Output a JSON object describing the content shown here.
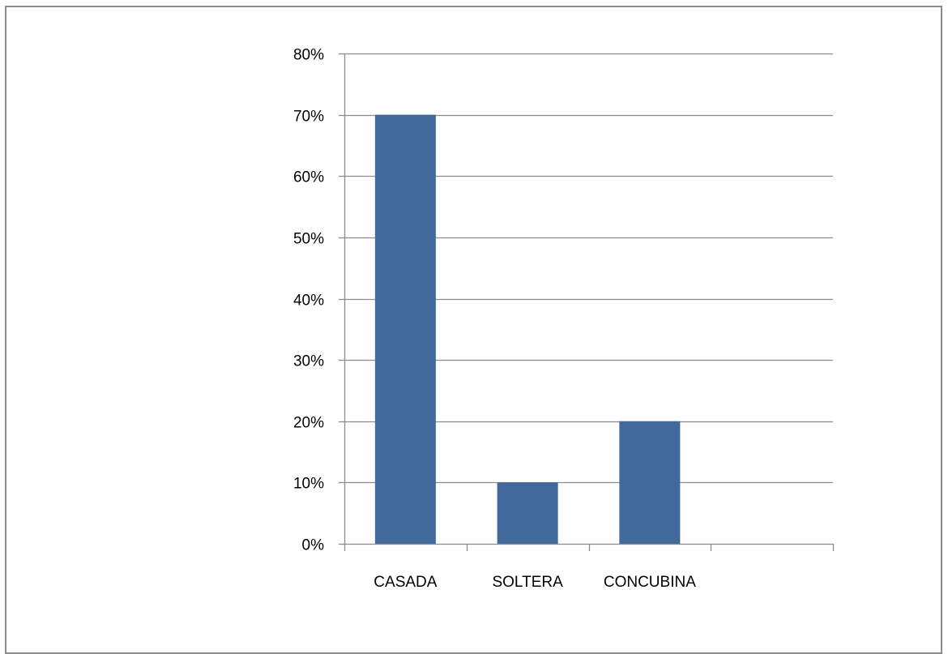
{
  "chart_data": {
    "type": "bar",
    "categories": [
      "CASADA",
      "SOLTERA",
      "CONCUBINA",
      ""
    ],
    "values": [
      70,
      10,
      20,
      null
    ],
    "ylim": [
      0,
      80
    ],
    "y_ticks": [
      0,
      10,
      20,
      30,
      40,
      50,
      60,
      70,
      80
    ],
    "y_tick_format": "percent",
    "y_tick_labels": [
      "0%",
      "10%",
      "20%",
      "30%",
      "40%",
      "50%",
      "60%",
      "70%",
      "80%"
    ],
    "grid": true,
    "legend": "none",
    "title": "",
    "xlabel": "",
    "ylabel": ""
  },
  "colors": {
    "bar": "#41699b",
    "grid": "#8c8c8c",
    "axis": "#8c8c8c",
    "frame": "#8c8c8c"
  }
}
